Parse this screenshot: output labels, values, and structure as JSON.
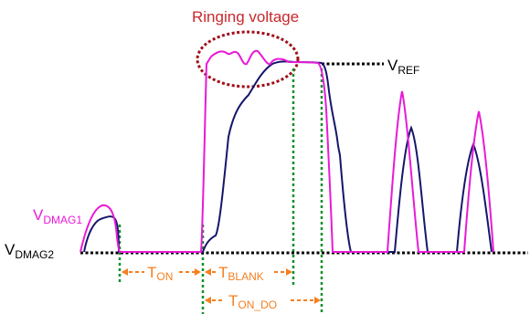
{
  "title": "Ringing voltage",
  "labels": {
    "vref": {
      "main": "V",
      "sub": "REF"
    },
    "vdmag1": {
      "main": "V",
      "sub": "DMAG1"
    },
    "vdmag2": {
      "main": "V",
      "sub": "DMAG2"
    },
    "ton": {
      "main": "T",
      "sub": "ON"
    },
    "tblank": {
      "main": "T",
      "sub": "BLANK"
    },
    "tondo": {
      "main": "T",
      "sub": "ON_DO"
    }
  },
  "colors": {
    "title": "#c8282d",
    "ring_ellipse": "#a0101a",
    "vdmag1_wave": "#e81ad8",
    "vdmag2_wave": "#15166b",
    "baseline": "#000000",
    "guides": "#11902a",
    "timing_arrows": "#f57f20"
  }
}
